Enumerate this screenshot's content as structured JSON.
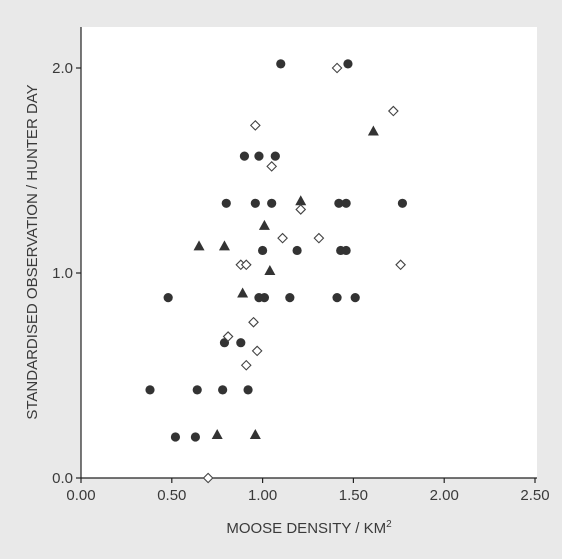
{
  "chart_data": {
    "type": "scatter",
    "xlabel": "MOOSE DENSITY  /  KM",
    "xlabel_superscript": "2",
    "ylabel": "STANDARDISED OBSERVATION  /  HUNTER DAY",
    "xlim": [
      0.0,
      2.5
    ],
    "ylim": [
      0.0,
      2.2
    ],
    "x_ticks": [
      {
        "value": 0.0,
        "label": "0.00"
      },
      {
        "value": 0.5,
        "label": "0.50"
      },
      {
        "value": 1.0,
        "label": "1.00"
      },
      {
        "value": 1.5,
        "label": "1.50"
      },
      {
        "value": 2.0,
        "label": "2.00"
      },
      {
        "value": 2.5,
        "label": "2.50"
      }
    ],
    "y_ticks": [
      {
        "value": 0.0,
        "label": "0.0"
      },
      {
        "value": 1.0,
        "label": "1.0"
      },
      {
        "value": 2.0,
        "label": "2.0"
      }
    ],
    "grid": false,
    "legend": "none",
    "colors": {
      "background": "#e9e9e9",
      "plot_area": "#ffffff",
      "marker": "#333333",
      "hollow_marker_stroke": "#444444"
    },
    "series": [
      {
        "marker": "circle",
        "points": [
          [
            0.38,
            0.43
          ],
          [
            0.48,
            0.88
          ],
          [
            0.52,
            0.2
          ],
          [
            0.63,
            0.2
          ],
          [
            0.64,
            0.43
          ],
          [
            0.78,
            0.43
          ],
          [
            0.79,
            0.66
          ],
          [
            0.8,
            1.34
          ],
          [
            0.88,
            0.66
          ],
          [
            0.9,
            1.57
          ],
          [
            0.92,
            0.43
          ],
          [
            0.96,
            1.34
          ],
          [
            0.98,
            1.57
          ],
          [
            0.98,
            0.88
          ],
          [
            1.0,
            1.11
          ],
          [
            1.01,
            0.88
          ],
          [
            1.05,
            1.34
          ],
          [
            1.07,
            1.57
          ],
          [
            1.1,
            2.02
          ],
          [
            1.15,
            0.88
          ],
          [
            1.19,
            1.11
          ],
          [
            1.41,
            0.88
          ],
          [
            1.42,
            1.34
          ],
          [
            1.43,
            1.11
          ],
          [
            1.46,
            1.34
          ],
          [
            1.46,
            1.11
          ],
          [
            1.47,
            2.02
          ],
          [
            1.51,
            0.88
          ],
          [
            1.77,
            1.34
          ]
        ]
      },
      {
        "marker": "triangle",
        "points": [
          [
            0.65,
            1.13
          ],
          [
            0.75,
            0.21
          ],
          [
            0.79,
            1.13
          ],
          [
            0.89,
            0.9
          ],
          [
            0.96,
            0.21
          ],
          [
            1.01,
            1.23
          ],
          [
            1.04,
            1.01
          ],
          [
            1.21,
            1.35
          ],
          [
            1.61,
            1.69
          ]
        ]
      },
      {
        "marker": "diamond",
        "points": [
          [
            0.7,
            0.0
          ],
          [
            0.81,
            0.69
          ],
          [
            0.88,
            1.04
          ],
          [
            0.91,
            1.04
          ],
          [
            0.91,
            0.55
          ],
          [
            0.95,
            0.76
          ],
          [
            0.96,
            1.72
          ],
          [
            0.97,
            0.62
          ],
          [
            1.05,
            1.52
          ],
          [
            1.11,
            1.17
          ],
          [
            1.21,
            1.31
          ],
          [
            1.31,
            1.17
          ],
          [
            1.41,
            2.0
          ],
          [
            1.72,
            1.79
          ],
          [
            1.76,
            1.04
          ]
        ]
      }
    ]
  }
}
